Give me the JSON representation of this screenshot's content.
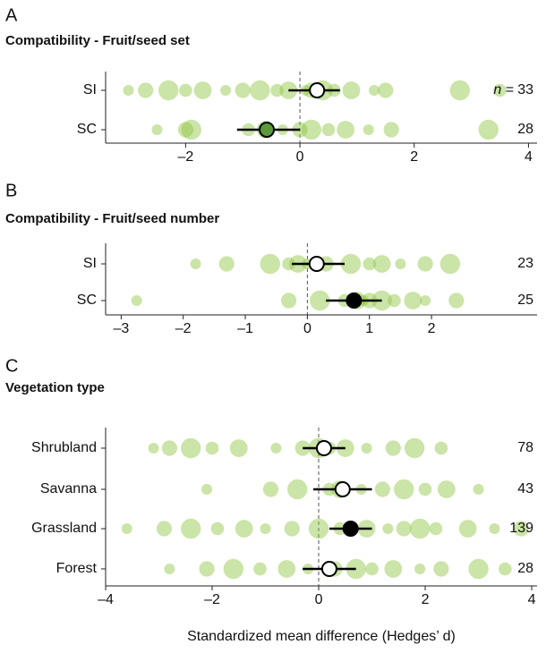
{
  "chart_data": [
    {
      "type": "forest",
      "panel": "A",
      "title": "Compatibility - Fruit/seed set",
      "categories": [
        "SI",
        "SC"
      ],
      "means": [
        0.3,
        -0.58
      ],
      "ci_low": [
        -0.2,
        -1.1
      ],
      "ci_high": [
        0.7,
        0
      ],
      "mean_colors": [
        "#ffffff",
        "#5a9a3a"
      ],
      "n_prefix": "n =",
      "n_labels": [
        "33",
        "28"
      ],
      "points": [
        [
          -3,
          -2.7,
          -2.3,
          -2,
          -1.7,
          -1.3,
          -1,
          -0.7,
          -0.4,
          -0.2,
          0.1,
          0.2,
          0.4,
          0.6,
          0.9,
          1.3,
          1.5,
          2.8,
          3.5
        ],
        [
          -2.5,
          -2,
          -1.9,
          -0.9,
          -0.6,
          -0.3,
          0,
          0.2,
          0.5,
          0.8,
          1.2,
          1.6,
          3.3
        ]
      ],
      "xlim": [
        -3.4,
        4.15
      ],
      "xticks": [
        {
          "value": -2,
          "label": "–2"
        },
        0,
        2,
        4
      ]
    },
    {
      "type": "forest",
      "panel": "B",
      "title": "Compatibility - Fruit/seed number",
      "categories": [
        "SI",
        "SC"
      ],
      "means": [
        0.15,
        0.75
      ],
      "ci_low": [
        -0.25,
        0.3
      ],
      "ci_high": [
        0.6,
        1.2
      ],
      "mean_colors": [
        "#ffffff",
        "#000000"
      ],
      "n_labels": [
        "23",
        "25"
      ],
      "points": [
        [
          -1.8,
          -1.3,
          -0.6,
          -0.3,
          -0.15,
          0,
          0.3,
          0.7,
          1,
          1.2,
          1.5,
          1.9,
          2.3
        ],
        [
          -2.75,
          -0.3,
          0.2,
          0.6,
          0.8,
          0.9,
          1,
          1.2,
          1.4,
          1.7,
          1.9,
          2.4
        ]
      ],
      "xlim": [
        -3.25,
        3.7
      ],
      "xticks": [
        {
          "value": -3,
          "label": "–3"
        },
        {
          "value": -2,
          "label": "–2"
        },
        {
          "value": -1,
          "label": "–1"
        },
        0,
        1,
        2
      ]
    },
    {
      "type": "forest",
      "panel": "C",
      "title": "Vegetation type",
      "categories": [
        "Shrubland",
        "Savanna",
        "Grassland",
        "Forest"
      ],
      "means": [
        0.1,
        0.45,
        0.6,
        0.2
      ],
      "ci_low": [
        -0.3,
        -0.1,
        0.2,
        -0.3
      ],
      "ci_high": [
        0.5,
        1.0,
        1.0,
        0.7
      ],
      "mean_colors": [
        "#ffffff",
        "#ffffff",
        "#000000",
        "#ffffff"
      ],
      "n_labels": [
        "78",
        "43",
        "139",
        "28"
      ],
      "points": [
        [
          -3.1,
          -2.8,
          -2.4,
          -2,
          -1.5,
          -0.8,
          -0.3,
          0,
          0.2,
          0.5,
          0.9,
          1.4,
          1.8,
          2.3
        ],
        [
          -2.1,
          -0.9,
          -0.4,
          0.2,
          0.4,
          0.8,
          1.2,
          1.6,
          2,
          2.4,
          3
        ],
        [
          -3.6,
          -2.9,
          -2.4,
          -1.9,
          -1.4,
          -1,
          -0.5,
          0,
          0.4,
          0.9,
          1.3,
          1.6,
          1.9,
          2.2,
          2.8,
          3.3,
          3.8
        ],
        [
          -2.8,
          -2.1,
          -1.6,
          -1.1,
          -0.6,
          -0.2,
          0.3,
          0.7,
          1,
          1.4,
          1.9,
          2.3,
          3,
          3.5
        ]
      ],
      "xlim": [
        -4,
        4.1
      ],
      "xticks": [
        {
          "value": -4,
          "label": "–4"
        },
        {
          "value": -2,
          "label": "–2"
        },
        0,
        2,
        4
      ],
      "xlabel": "Standardized mean difference (Hedges’ d)"
    }
  ]
}
